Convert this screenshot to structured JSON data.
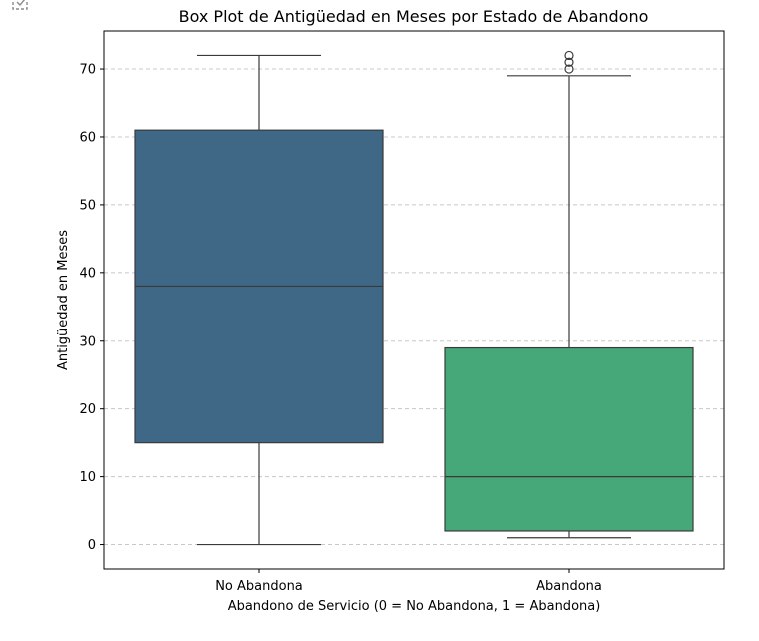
{
  "chart_data": {
    "type": "boxplot",
    "title": "Box Plot de Antigüedad en Meses por Estado de Abandono",
    "xlabel": "Abandono de Servicio (0 = No Abandona, 1 = Abandona)",
    "ylabel": "Antigüedad en Meses",
    "ylim": [
      -3.6,
      75.6
    ],
    "yticks": [
      0,
      10,
      20,
      30,
      40,
      50,
      60,
      70
    ],
    "grid": "y, dashed",
    "categories": [
      "No Abandona",
      "Abandona"
    ],
    "series": [
      {
        "category": "No Abandona",
        "whisker_low": 0,
        "q1": 15,
        "median": 38,
        "q3": 61,
        "whisker_high": 72,
        "outliers": [],
        "color": "#3e6886"
      },
      {
        "category": "Abandona",
        "whisker_low": 1,
        "q1": 2,
        "median": 10,
        "q3": 29,
        "whisker_high": 69,
        "outliers": [
          70,
          71,
          72
        ],
        "color": "#46a878"
      }
    ]
  },
  "colors": {
    "box_edge": "#3a3a3a",
    "grid": "#c8c8c8",
    "axis": "#000000"
  },
  "icons": {
    "corner": "copy-output-icon"
  }
}
